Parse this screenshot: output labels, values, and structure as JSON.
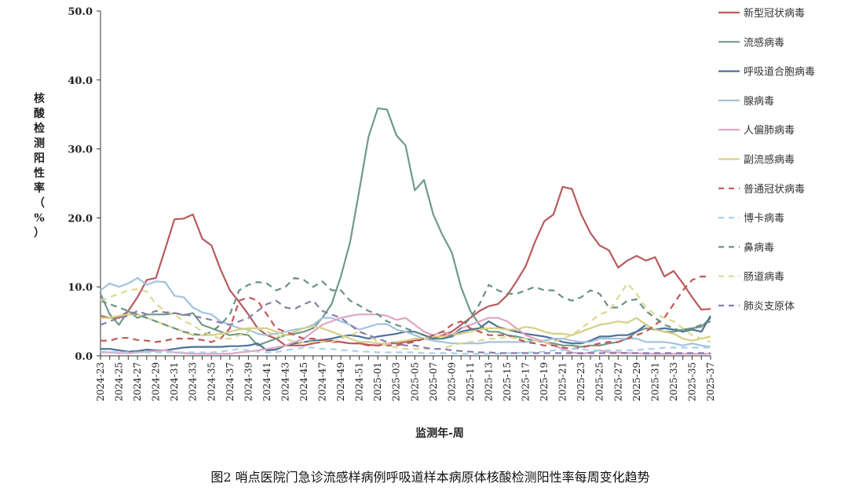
{
  "chart_data": {
    "type": "line",
    "title": "",
    "caption": "图2 哨点医院门急诊流感样病例呼吸道样本病原体核酸检测阳性率每周变化趋势",
    "xlabel": "监测年-周",
    "ylabel": "核酸检测阳性率（%）",
    "ylim": [
      0,
      50
    ],
    "yticks": [
      "0.0",
      "10.0",
      "20.0",
      "30.0",
      "40.0",
      "50.0"
    ],
    "grid": false,
    "legend_position": "right",
    "categories": [
      "2024-23",
      "2024-24",
      "2024-25",
      "2024-26",
      "2024-27",
      "2024-28",
      "2024-29",
      "2024-30",
      "2024-31",
      "2024-32",
      "2024-33",
      "2024-34",
      "2024-35",
      "2024-36",
      "2024-37",
      "2024-38",
      "2024-39",
      "2024-40",
      "2024-41",
      "2024-42",
      "2024-43",
      "2024-44",
      "2024-45",
      "2024-46",
      "2024-47",
      "2024-48",
      "2024-49",
      "2024-50",
      "2024-51",
      "2024-52",
      "2025-01",
      "2025-02",
      "2025-03",
      "2025-04",
      "2025-05",
      "2025-06",
      "2025-07",
      "2025-08",
      "2025-09",
      "2025-10",
      "2025-11",
      "2025-12",
      "2025-13",
      "2025-14",
      "2025-15",
      "2025-16",
      "2025-17",
      "2025-18",
      "2025-19",
      "2025-20",
      "2025-21",
      "2025-22",
      "2025-23",
      "2025-24",
      "2025-25",
      "2025-26",
      "2025-27",
      "2025-28",
      "2025-29",
      "2025-30",
      "2025-31",
      "2025-32",
      "2025-33",
      "2025-34",
      "2025-35",
      "2025-36",
      "2025-37"
    ],
    "xtick_labels": [
      "2024-23",
      "2024-25",
      "2024-27",
      "2024-29",
      "2024-31",
      "2024-33",
      "2024-35",
      "2024-37",
      "2024-39",
      "2024-41",
      "2024-43",
      "2024-45",
      "2024-47",
      "2024-49",
      "2024-51",
      "2025-01",
      "2025-03",
      "2025-05",
      "2025-07",
      "2025-09",
      "2025-11",
      "2025-13",
      "2025-15",
      "2025-17",
      "2025-19",
      "2025-21",
      "2025-23",
      "2025-25",
      "2025-27",
      "2025-29",
      "2025-31",
      "2025-33",
      "2025-35",
      "2025-37"
    ],
    "series": [
      {
        "name": "新型冠状病毒",
        "color": "#b85a5c",
        "dash": false,
        "values": [
          5.8,
          5.5,
          5.5,
          6.5,
          8.5,
          11,
          11.3,
          15.5,
          19.8,
          19.9,
          20.5,
          17,
          16,
          12.5,
          9.5,
          7.8,
          6,
          4,
          3,
          2.5,
          1.5,
          1.5,
          1.5,
          1.8,
          2,
          2.2,
          2,
          1.8,
          1.8,
          1.6,
          1.5,
          1.8,
          1.8,
          2,
          2.2,
          2.5,
          2.5,
          3,
          3.5,
          4.5,
          5.5,
          6.5,
          7.2,
          7.5,
          8.8,
          10.8,
          13,
          16.5,
          19.5,
          20.5,
          24.5,
          24.2,
          20.5,
          17.8,
          16,
          15.3,
          12.8,
          13.8,
          14.5,
          13.8,
          14.3,
          11.5,
          12.3,
          10.5,
          8.5,
          6.7,
          6.8
        ]
      },
      {
        "name": "流感病毒",
        "color": "#6f9a86",
        "dash": false,
        "values": [
          9,
          6,
          4.5,
          6.5,
          5.5,
          6,
          6,
          6,
          6.2,
          5.9,
          6.2,
          4.5,
          4,
          3.5,
          3,
          3.2,
          3,
          1.5,
          2,
          2.5,
          3,
          3.2,
          3.5,
          4,
          5.5,
          7.5,
          11.5,
          16.5,
          24,
          31.8,
          35.9,
          35.7,
          32,
          30.5,
          24,
          25.5,
          20.5,
          17.5,
          15,
          10,
          6.5,
          4.5,
          3.5,
          3.5,
          3,
          2.8,
          2.5,
          2.2,
          2,
          1.8,
          1.5,
          1.5,
          1.3,
          1.5,
          1.5,
          1.8,
          2,
          2.5,
          3.5,
          4,
          3.8,
          3.5,
          3.5,
          3.8,
          4,
          4.2,
          5.5
        ]
      },
      {
        "name": "呼吸道合胞病毒",
        "color": "#4d7198",
        "dash": false,
        "values": [
          1,
          1,
          0.8,
          0.6,
          0.7,
          0.9,
          0.8,
          0.8,
          1,
          1.2,
          1.3,
          1.3,
          1.3,
          1.3,
          1.4,
          1.4,
          1.5,
          1.8,
          0.8,
          0.9,
          1.5,
          1.8,
          2,
          2.2,
          2.3,
          2.5,
          2.8,
          3,
          2.8,
          2.5,
          2.8,
          3,
          3.2,
          3.5,
          3.5,
          3,
          2.5,
          2.5,
          2.8,
          3.5,
          3.8,
          4,
          5,
          4.2,
          3.8,
          3.5,
          3.2,
          3,
          2.8,
          2.5,
          2,
          1.8,
          1.8,
          2.2,
          2.8,
          2.8,
          3,
          3,
          3.5,
          4.5,
          3.8,
          4,
          3.8,
          3.5,
          3.8,
          3.5,
          5.8
        ]
      },
      {
        "name": "腺病毒",
        "color": "#a3c3de",
        "dash": false,
        "values": [
          9.5,
          10.5,
          10,
          10.5,
          11.3,
          10.3,
          10.8,
          10.7,
          8.7,
          8.5,
          7,
          6.3,
          6,
          5,
          4.5,
          4,
          3.8,
          3.2,
          3,
          3.2,
          3.5,
          3.8,
          4,
          4.5,
          5.5,
          5.5,
          5,
          4.5,
          3.8,
          4.2,
          4.6,
          4.6,
          3.8,
          3.5,
          3,
          2.5,
          2.2,
          2,
          1.8,
          1.8,
          1.8,
          1.8,
          2,
          2,
          2,
          2,
          2,
          2.2,
          2.2,
          2.5,
          2.5,
          2.2,
          2,
          2,
          2.5,
          2.5,
          2.5,
          2.5,
          2.5,
          2,
          2,
          2,
          1.8,
          1.5,
          1.8,
          1.5,
          1.3
        ]
      },
      {
        "name": "人偏肺病毒",
        "color": "#e0a4c4",
        "dash": false,
        "values": [
          0.5,
          0.5,
          0.4,
          0.4,
          0.5,
          0.6,
          0.7,
          0.8,
          0.5,
          0.4,
          0.3,
          0.3,
          0.3,
          0.3,
          0.3,
          0.5,
          0.6,
          0.8,
          1,
          1.2,
          1.5,
          2,
          2.5,
          3.5,
          4.5,
          5,
          5.5,
          5.8,
          6,
          6,
          6,
          5.8,
          5.2,
          5.5,
          4.5,
          3.5,
          3,
          3.5,
          3,
          4,
          4.5,
          5,
          5.5,
          5.5,
          5,
          4,
          3,
          2.5,
          2,
          1.5,
          1,
          0.5,
          0.3,
          0.5,
          0.8,
          0.5,
          0.5,
          0.4,
          0.4,
          0.3,
          0.3,
          0.3,
          0.3,
          0.3,
          0.3,
          0.3,
          0.3
        ]
      },
      {
        "name": "副流感病毒",
        "color": "#d6cf86",
        "dash": false,
        "values": [
          5.5,
          5.5,
          5.8,
          6,
          6,
          5.5,
          5,
          4.5,
          4,
          3.5,
          3,
          3,
          3,
          3.2,
          3.5,
          3.8,
          4,
          4,
          4,
          3.5,
          3,
          3.5,
          4,
          4.3,
          4,
          3.5,
          3,
          2.5,
          2,
          2,
          1.8,
          1.8,
          2,
          2.2,
          2.5,
          2.5,
          2.8,
          2.8,
          3,
          3.2,
          3.5,
          3.8,
          4,
          4,
          3.8,
          3.8,
          4.2,
          4,
          3.5,
          3.2,
          3.2,
          3,
          3.5,
          4,
          4.5,
          4.7,
          5,
          4.8,
          5.5,
          4.5,
          3.8,
          3.5,
          3.2,
          2.5,
          2.2,
          2.5,
          2.8
        ]
      },
      {
        "name": "普通冠状病毒",
        "color": "#c0575a",
        "dash": true,
        "values": [
          2.2,
          2.2,
          2.6,
          2.6,
          2.3,
          2.2,
          2,
          2.2,
          2.5,
          2.5,
          2.5,
          2.3,
          2,
          2.5,
          4,
          8,
          8.5,
          8,
          6,
          4,
          3.5,
          3,
          2.5,
          2.5,
          2.3,
          2,
          2,
          1.8,
          1.8,
          1.5,
          1.5,
          1.5,
          1.5,
          1.8,
          2,
          2.5,
          3,
          3.5,
          4.5,
          5,
          4,
          3.5,
          3,
          3,
          3,
          2.5,
          2,
          1.8,
          1.5,
          1.5,
          1.2,
          1,
          1.2,
          1.5,
          1.8,
          2,
          2,
          2.5,
          3,
          3.5,
          4.5,
          5.5,
          7.5,
          9.5,
          11,
          11.5,
          11.5
        ]
      },
      {
        "name": "博卡病毒",
        "color": "#abd0ea",
        "dash": true,
        "values": [
          0.6,
          0.6,
          0.5,
          0.5,
          0.5,
          0.5,
          0.5,
          0.5,
          0.5,
          0.5,
          0.5,
          0.5,
          0.5,
          0.6,
          0.8,
          1,
          0.8,
          0.6,
          0.5,
          0.5,
          0.8,
          1,
          1.2,
          1.2,
          1,
          1,
          0.8,
          0.8,
          0.6,
          0.6,
          0.5,
          0.5,
          0.5,
          0.5,
          0.5,
          0.4,
          0.4,
          0.4,
          0.4,
          0.3,
          0.3,
          0.3,
          0.3,
          0.3,
          0.4,
          0.4,
          0.5,
          0.5,
          0.6,
          0.8,
          0.8,
          1,
          1,
          0.8,
          0.8,
          0.8,
          0.8,
          0.8,
          0.8,
          1,
          1,
          1.2,
          1.2,
          1.2,
          1.2,
          1.2,
          1.2
        ]
      },
      {
        "name": "鼻病毒",
        "color": "#6a9282",
        "dash": true,
        "values": [
          8,
          7.5,
          7,
          6.5,
          6,
          5.5,
          5,
          4.5,
          4,
          3.5,
          3.2,
          3,
          3.5,
          4.5,
          6,
          9.5,
          10.3,
          10.7,
          10.5,
          9.5,
          10,
          11.3,
          11,
          10,
          10.8,
          9.5,
          9.5,
          8,
          7.3,
          6.5,
          6,
          5,
          4.5,
          4,
          3.5,
          3,
          2.5,
          2.5,
          3,
          4,
          5.5,
          7.5,
          10.3,
          9.5,
          9,
          9,
          9.5,
          10,
          9.5,
          9.5,
          8.5,
          8,
          8.5,
          9.5,
          9,
          7,
          7,
          8,
          8.2,
          6.5,
          5.5,
          4.5,
          4,
          3.5,
          4,
          4.5,
          5
        ]
      },
      {
        "name": "肠道病毒",
        "color": "#dcd892",
        "dash": true,
        "values": [
          8,
          8.5,
          9,
          9.5,
          9.7,
          9.3,
          7.5,
          6.5,
          6,
          5,
          4.5,
          3.5,
          3,
          2.5,
          2.5,
          3,
          3.5,
          4,
          3.5,
          3,
          2.5,
          2,
          2,
          2,
          2,
          2,
          2.5,
          3,
          3.5,
          3,
          2,
          1.5,
          1.2,
          1,
          1,
          1,
          1,
          1,
          1.5,
          1.8,
          2,
          2.2,
          2.5,
          2.5,
          2.8,
          2.5,
          2.5,
          2.2,
          2,
          2,
          2.5,
          3,
          4,
          5,
          6,
          6.5,
          8.5,
          10.5,
          9,
          7,
          6,
          5.5,
          5,
          4,
          3,
          2.5,
          2
        ]
      },
      {
        "name": "肺炎支原体",
        "color": "#8a7cab",
        "dash": true,
        "values": [
          4.5,
          5,
          5.5,
          5.8,
          6.5,
          6,
          6.5,
          6.3,
          6.2,
          6,
          5.8,
          5.5,
          5.2,
          4.8,
          4.5,
          5,
          5.5,
          6.5,
          7.5,
          8,
          7,
          6.8,
          7.5,
          8,
          6.5,
          6,
          5.5,
          4.5,
          3.5,
          3,
          2.5,
          2,
          1.8,
          1.5,
          1.5,
          1.2,
          1,
          1,
          0.8,
          0.7,
          0.6,
          0.5,
          0.5,
          0.4,
          0.4,
          0.4,
          0.4,
          0.4,
          0.4,
          0.4,
          0.4,
          0.4,
          0.4,
          0.4,
          0.4,
          0.4,
          0.4,
          0.4,
          0.4,
          0.4,
          0.4,
          0.4,
          0.4,
          0.4,
          0.4,
          0.4,
          0.4
        ]
      }
    ]
  }
}
